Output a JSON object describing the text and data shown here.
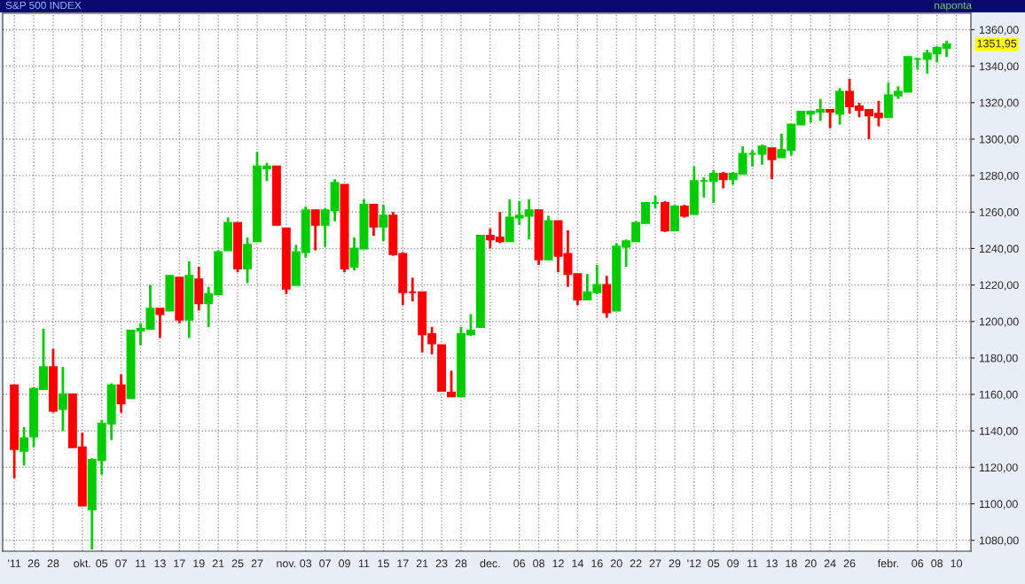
{
  "chart_data": {
    "type": "candlestick",
    "title": "S&P 500 INDEX",
    "subtitle": "naponta",
    "categories": [
      "'11",
      null,
      "26",
      null,
      "28",
      null,
      null,
      "okt.",
      null,
      "05",
      null,
      "07",
      null,
      "11",
      null,
      "13",
      null,
      "17",
      null,
      "19",
      null,
      "21",
      null,
      "25",
      null,
      "27",
      null,
      null,
      "nov.",
      null,
      "03",
      null,
      "07",
      null,
      "09",
      null,
      "11",
      null,
      "15",
      null,
      "17",
      null,
      "21",
      null,
      "23",
      null,
      "28",
      null,
      null,
      "dec.",
      null,
      null,
      "06",
      null,
      "08",
      null,
      "12",
      null,
      "14",
      null,
      "16",
      null,
      "20",
      null,
      "22",
      null,
      "27",
      null,
      "29",
      null,
      "'12",
      null,
      "05",
      null,
      "09",
      null,
      "11",
      null,
      "13",
      null,
      "18",
      null,
      "20",
      null,
      "24",
      null,
      "26",
      null,
      null,
      null,
      "febr.",
      null,
      null,
      "06",
      null,
      "08",
      null,
      "10"
    ],
    "ohlc": [
      [
        1165,
        1165,
        1114,
        1130
      ],
      [
        1129,
        1142,
        1121,
        1136
      ],
      [
        1137,
        1164,
        1131,
        1163
      ],
      [
        1163,
        1196,
        1163,
        1175
      ],
      [
        1175,
        1185,
        1150,
        1151
      ],
      [
        1152,
        1175,
        1140,
        1160
      ],
      [
        1160,
        1160,
        1131,
        1131
      ],
      [
        1131,
        1139,
        1099,
        1099
      ],
      [
        1097,
        1125,
        1075,
        1124
      ],
      [
        1124,
        1146,
        1116,
        1144
      ],
      [
        1144,
        1166,
        1135,
        1165
      ],
      [
        1165,
        1171,
        1150,
        1155
      ],
      [
        1158,
        1195,
        1158,
        1195
      ],
      [
        1195,
        1199,
        1187,
        1196
      ],
      [
        1196,
        1220,
        1196,
        1207
      ],
      [
        1207,
        1207,
        1191,
        1204
      ],
      [
        1206,
        1225,
        1206,
        1225
      ],
      [
        1224,
        1224,
        1199,
        1201
      ],
      [
        1201,
        1233,
        1191,
        1225
      ],
      [
        1223,
        1230,
        1206,
        1210
      ],
      [
        1210,
        1219,
        1197,
        1215
      ],
      [
        1215,
        1239,
        1215,
        1238
      ],
      [
        1239,
        1257,
        1239,
        1254
      ],
      [
        1254,
        1254,
        1227,
        1229
      ],
      [
        1229,
        1246,
        1221,
        1242
      ],
      [
        1244,
        1293,
        1244,
        1285
      ],
      [
        1284,
        1287,
        1277,
        1285
      ],
      [
        1285,
        1285,
        1253,
        1253
      ],
      [
        1251,
        1251,
        1215,
        1218
      ],
      [
        1220,
        1242,
        1220,
        1238
      ],
      [
        1238,
        1263,
        1235,
        1261
      ],
      [
        1261,
        1261,
        1239,
        1253
      ],
      [
        1253,
        1262,
        1241,
        1261
      ],
      [
        1261,
        1278,
        1255,
        1276
      ],
      [
        1275,
        1275,
        1227,
        1229
      ],
      [
        1230,
        1246,
        1228,
        1240
      ],
      [
        1240,
        1267,
        1240,
        1264
      ],
      [
        1264,
        1264,
        1247,
        1252
      ],
      [
        1252,
        1264,
        1244,
        1258
      ],
      [
        1258,
        1260,
        1236,
        1237
      ],
      [
        1237,
        1238,
        1209,
        1216
      ],
      [
        1216,
        1224,
        1211,
        1216
      ],
      [
        1216,
        1216,
        1183,
        1193
      ],
      [
        1193,
        1197,
        1182,
        1188
      ],
      [
        1187,
        1187,
        1162,
        1162
      ],
      [
        1161,
        1173,
        1159,
        1159
      ],
      [
        1159,
        1197,
        1159,
        1193
      ],
      [
        1193,
        1204,
        1192,
        1195
      ],
      [
        1197,
        1247,
        1197,
        1247
      ],
      [
        1247,
        1251,
        1240,
        1245
      ],
      [
        1246,
        1260,
        1243,
        1244
      ],
      [
        1244,
        1267,
        1244,
        1257
      ],
      [
        1257,
        1266,
        1253,
        1258
      ],
      [
        1258,
        1267,
        1245,
        1261
      ],
      [
        1261,
        1261,
        1231,
        1234
      ],
      [
        1234,
        1258,
        1234,
        1255
      ],
      [
        1255,
        1255,
        1227,
        1236
      ],
      [
        1237,
        1250,
        1219,
        1226
      ],
      [
        1226,
        1226,
        1209,
        1212
      ],
      [
        1212,
        1226,
        1212,
        1216
      ],
      [
        1216,
        1231,
        1215,
        1220
      ],
      [
        1220,
        1225,
        1202,
        1205
      ],
      [
        1206,
        1243,
        1206,
        1241
      ],
      [
        1241,
        1245,
        1230,
        1244
      ],
      [
        1244,
        1255,
        1244,
        1254
      ],
      [
        1254,
        1265,
        1254,
        1265
      ],
      [
        1265,
        1269,
        1262,
        1265
      ],
      [
        1265,
        1266,
        1249,
        1250
      ],
      [
        1250,
        1264,
        1250,
        1263
      ],
      [
        1263,
        1264,
        1257,
        1258
      ],
      [
        1259,
        1285,
        1259,
        1277
      ],
      [
        1277,
        1279,
        1268,
        1277
      ],
      [
        1277,
        1283,
        1265,
        1281
      ],
      [
        1281,
        1282,
        1273,
        1278
      ],
      [
        1278,
        1282,
        1275,
        1281
      ],
      [
        1281,
        1296,
        1281,
        1292
      ],
      [
        1292,
        1294,
        1285,
        1292
      ],
      [
        1292,
        1297,
        1286,
        1296
      ],
      [
        1295,
        1295,
        1278,
        1289
      ],
      [
        1290,
        1303,
        1290,
        1294
      ],
      [
        1294,
        1308,
        1291,
        1308
      ],
      [
        1308,
        1315,
        1308,
        1315
      ],
      [
        1314,
        1315,
        1309,
        1315
      ],
      [
        1315,
        1322,
        1310,
        1316
      ],
      [
        1316,
        1316,
        1306,
        1315
      ],
      [
        1314,
        1328,
        1308,
        1326
      ],
      [
        1326,
        1333,
        1314,
        1318
      ],
      [
        1318,
        1320,
        1312,
        1316
      ],
      [
        1316,
        1316,
        1300,
        1313
      ],
      [
        1314,
        1321,
        1307,
        1312
      ],
      [
        1312,
        1331,
        1312,
        1324
      ],
      [
        1324,
        1329,
        1322,
        1326
      ],
      [
        1326,
        1345,
        1326,
        1345
      ],
      [
        1344,
        1344,
        1338,
        1344
      ],
      [
        1344,
        1349,
        1336,
        1347
      ],
      [
        1347,
        1351,
        1342,
        1350
      ],
      [
        1350,
        1354,
        1345,
        1351.95
      ],
      null
    ],
    "colors": [
      "#ff0000",
      "#00cc00",
      "#00cc00",
      "#00cc00",
      "#ff0000",
      "#00cc00",
      "#ff0000",
      "#ff0000",
      "#00cc00",
      "#00cc00",
      "#00cc00",
      "#ff0000",
      "#00cc00",
      "#00cc00",
      "#00cc00",
      "#ff0000",
      "#00cc00",
      "#ff0000",
      "#00cc00",
      "#ff0000",
      "#00cc00",
      "#00cc00",
      "#00cc00",
      "#ff0000",
      "#00cc00",
      "#00cc00",
      "#00cc00",
      "#ff0000",
      "#ff0000",
      "#00cc00",
      "#00cc00",
      "#ff0000",
      "#00cc00",
      "#00cc00",
      "#ff0000",
      "#00cc00",
      "#00cc00",
      "#ff0000",
      "#00cc00",
      "#ff0000",
      "#ff0000",
      "#ff0000",
      "#ff0000",
      "#ff0000",
      "#ff0000",
      "#ff0000",
      "#00cc00",
      "#00cc00",
      "#00cc00",
      "#ff0000",
      "#ff0000",
      "#00cc00",
      "#00cc00",
      "#00cc00",
      "#ff0000",
      "#00cc00",
      "#ff0000",
      "#ff0000",
      "#ff0000",
      "#00cc00",
      "#00cc00",
      "#ff0000",
      "#00cc00",
      "#00cc00",
      "#00cc00",
      "#00cc00",
      "#00cc00",
      "#ff0000",
      "#00cc00",
      "#ff0000",
      "#00cc00",
      "#00cc00",
      "#00cc00",
      "#ff0000",
      "#00cc00",
      "#00cc00",
      "#00cc00",
      "#00cc00",
      "#ff0000",
      "#00cc00",
      "#00cc00",
      "#00cc00",
      "#00cc00",
      "#00cc00",
      "#ff0000",
      "#00cc00",
      "#ff0000",
      "#ff0000",
      "#ff0000",
      "#ff0000",
      "#00cc00",
      "#00cc00",
      "#00cc00",
      "#00cc00",
      "#00cc00",
      "#00cc00",
      "#00cc00",
      null
    ],
    "ylim": [
      1074,
      1369
    ],
    "yticks": [
      {
        "value": 1080,
        "label": "1080,00"
      },
      {
        "value": 1100,
        "label": "1100,00"
      },
      {
        "value": 1120,
        "label": "1120,00"
      },
      {
        "value": 1140,
        "label": "1140,00"
      },
      {
        "value": 1160,
        "label": "1160,00"
      },
      {
        "value": 1180,
        "label": "1180,00"
      },
      {
        "value": 1200,
        "label": "1200,00"
      },
      {
        "value": 1220,
        "label": "1220,00"
      },
      {
        "value": 1240,
        "label": "1240,00"
      },
      {
        "value": 1260,
        "label": "1260,00"
      },
      {
        "value": 1280,
        "label": "1280,00"
      },
      {
        "value": 1300,
        "label": "1300,00"
      },
      {
        "value": 1320,
        "label": "1320,00"
      },
      {
        "value": 1340,
        "label": "1340,00"
      },
      {
        "value": 1360,
        "label": "1360,00"
      }
    ],
    "annotations": [
      "1351,95"
    ],
    "grid": true
  }
}
